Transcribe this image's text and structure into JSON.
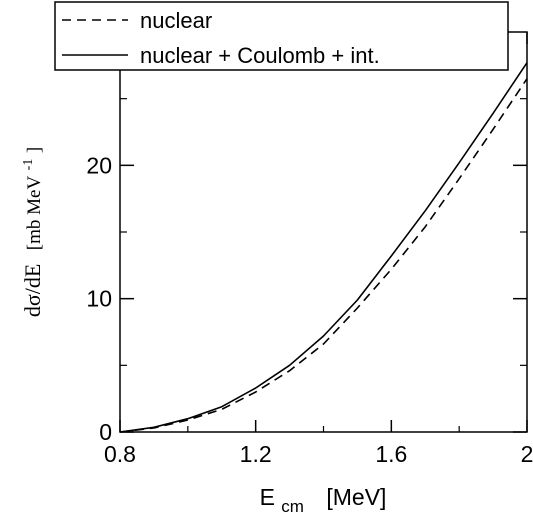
{
  "chart_data": {
    "type": "line",
    "xlabel": {
      "main": "E",
      "sub": "cm",
      "unit": "[MeV]"
    },
    "ylabel": {
      "main": "dσ/dE",
      "unit_prefix": "[mb MeV",
      "unit_exp": "-1",
      "unit_suffix": "]"
    },
    "xlim": [
      0.8,
      2.0
    ],
    "ylim": [
      0,
      30
    ],
    "x_ticks": [
      0.8,
      1.2,
      1.6,
      2.0
    ],
    "x_tick_labels": [
      "0.8",
      "1.2",
      "1.6",
      "2"
    ],
    "y_ticks": [
      0,
      10,
      20
    ],
    "y_tick_labels": [
      "0",
      "10",
      "20"
    ],
    "grid": false,
    "legend_position": "top-left",
    "series": [
      {
        "name": "nuclear",
        "style": "dashed",
        "color": "#000000",
        "x": [
          0.8,
          0.9,
          1.0,
          1.1,
          1.2,
          1.3,
          1.4,
          1.5,
          1.6,
          1.7,
          1.8,
          1.9,
          2.0
        ],
        "y": [
          0.0,
          0.3,
          0.9,
          1.7,
          3.0,
          4.6,
          6.6,
          9.3,
          12.2,
          15.4,
          19.0,
          22.7,
          26.5
        ]
      },
      {
        "name": "nuclear + Coulomb + int.",
        "style": "solid",
        "color": "#000000",
        "x": [
          0.8,
          0.9,
          1.0,
          1.1,
          1.2,
          1.3,
          1.4,
          1.5,
          1.6,
          1.7,
          1.8,
          1.9,
          2.0
        ],
        "y": [
          0.0,
          0.35,
          1.0,
          1.9,
          3.3,
          5.0,
          7.2,
          9.9,
          13.2,
          16.6,
          20.2,
          23.9,
          27.7
        ]
      }
    ]
  }
}
